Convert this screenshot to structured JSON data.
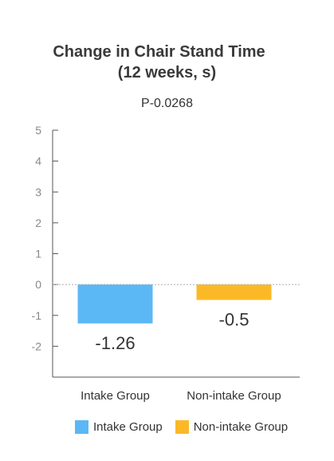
{
  "chart_data": {
    "type": "bar",
    "title_line1": "Change in Chair Stand Time",
    "title_line2": "(12 weeks, s)",
    "subtitle": "P-0.0268",
    "categories": [
      "Intake Group",
      "Non-intake Group"
    ],
    "values": [
      -1.26,
      -0.5
    ],
    "value_labels": [
      "-1.26",
      "-0.5"
    ],
    "colors": [
      "#5bb8f5",
      "#fbb927"
    ],
    "ylim": [
      -3,
      5
    ],
    "yticks": [
      5,
      4,
      3,
      2,
      1,
      0,
      -1,
      -2
    ],
    "ytick_labels": [
      "5",
      "4",
      "3",
      "2",
      "1",
      "0",
      "-1",
      "-2"
    ],
    "zero_line": "dotted",
    "legend": {
      "placement": "bottom",
      "entries": [
        "Intake Group",
        "Non-intake Group"
      ]
    }
  }
}
